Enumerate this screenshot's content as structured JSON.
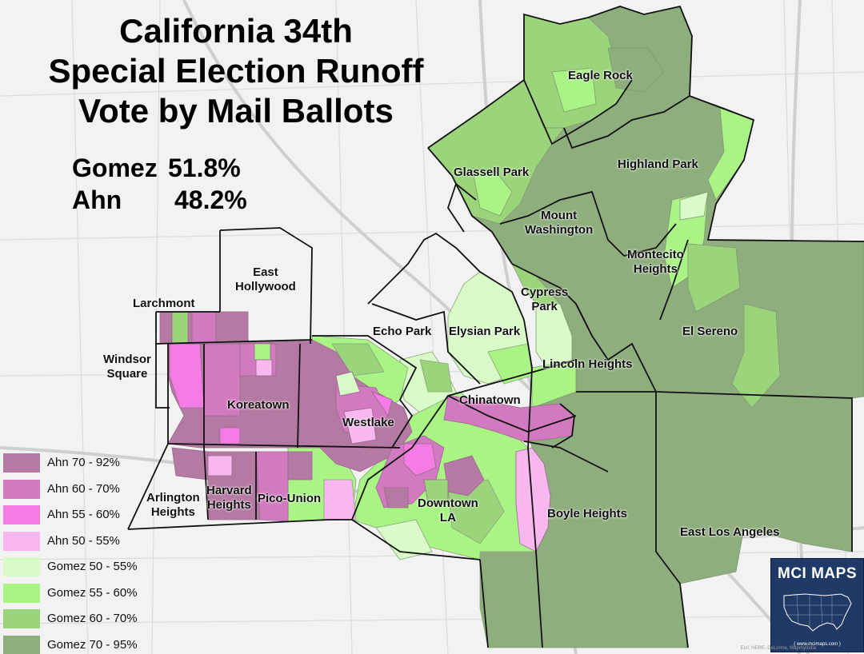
{
  "title_lines": [
    "California 34th",
    "Special Election Runoff",
    "Vote by Mail Ballots"
  ],
  "results": {
    "gomez": {
      "name": "Gomez",
      "pct": "51.8%"
    },
    "ahn": {
      "name": "Ahn",
      "pct": "48.2%"
    }
  },
  "legend": [
    {
      "label": "Ahn 70 - 92%",
      "color": "#b57aa3"
    },
    {
      "label": "Ahn 60 - 70%",
      "color": "#d27ac0"
    },
    {
      "label": "Ahn 55 - 60%",
      "color": "#f47ce4"
    },
    {
      "label": "Ahn 50 - 55%",
      "color": "#f8b8ef"
    },
    {
      "label": "Gomez 50 - 55%",
      "color": "#d9fbc7"
    },
    {
      "label": "Gomez 55 - 60%",
      "color": "#aaf486"
    },
    {
      "label": "Gomez 60 - 70%",
      "color": "#9cd47b"
    },
    {
      "label": "Gomez 70 - 95%",
      "color": "#8fae7e"
    }
  ],
  "places": {
    "eagle_rock": "Eagle Rock",
    "glassell_park": "Glassell Park",
    "highland_park": "Highland Park",
    "mount_washington": [
      "Mount",
      "Washington"
    ],
    "montecito_heights": [
      "Montecito",
      "Heights"
    ],
    "cypress_park": [
      "Cypress",
      "Park"
    ],
    "east_hollywood": [
      "East",
      "Hollywood"
    ],
    "larchmont": "Larchmont",
    "echo_park": "Echo Park",
    "elysian_park": "Elysian Park",
    "el_sereno": "El Sereno",
    "lincoln_heights": "Lincoln Heights",
    "windsor_square": [
      "Windsor",
      "Square"
    ],
    "koreatown": "Koreatown",
    "chinatown": "Chinatown",
    "westlake": "Westlake",
    "arlington_heights": [
      "Arlington",
      "Heights"
    ],
    "harvard_heights": [
      "Harvard",
      "Heights"
    ],
    "pico_union": "Pico-Union",
    "downtown_la": [
      "Downtown",
      "LA"
    ],
    "boyle_heights": "Boyle Heights",
    "east_los_angeles": "East Los Angeles"
  },
  "logo": {
    "title": "MCI MAPS",
    "url": "{ www.mcimaps.com }"
  },
  "attribution": "Esri, HERE, DeLorme, MapmyIndia"
}
